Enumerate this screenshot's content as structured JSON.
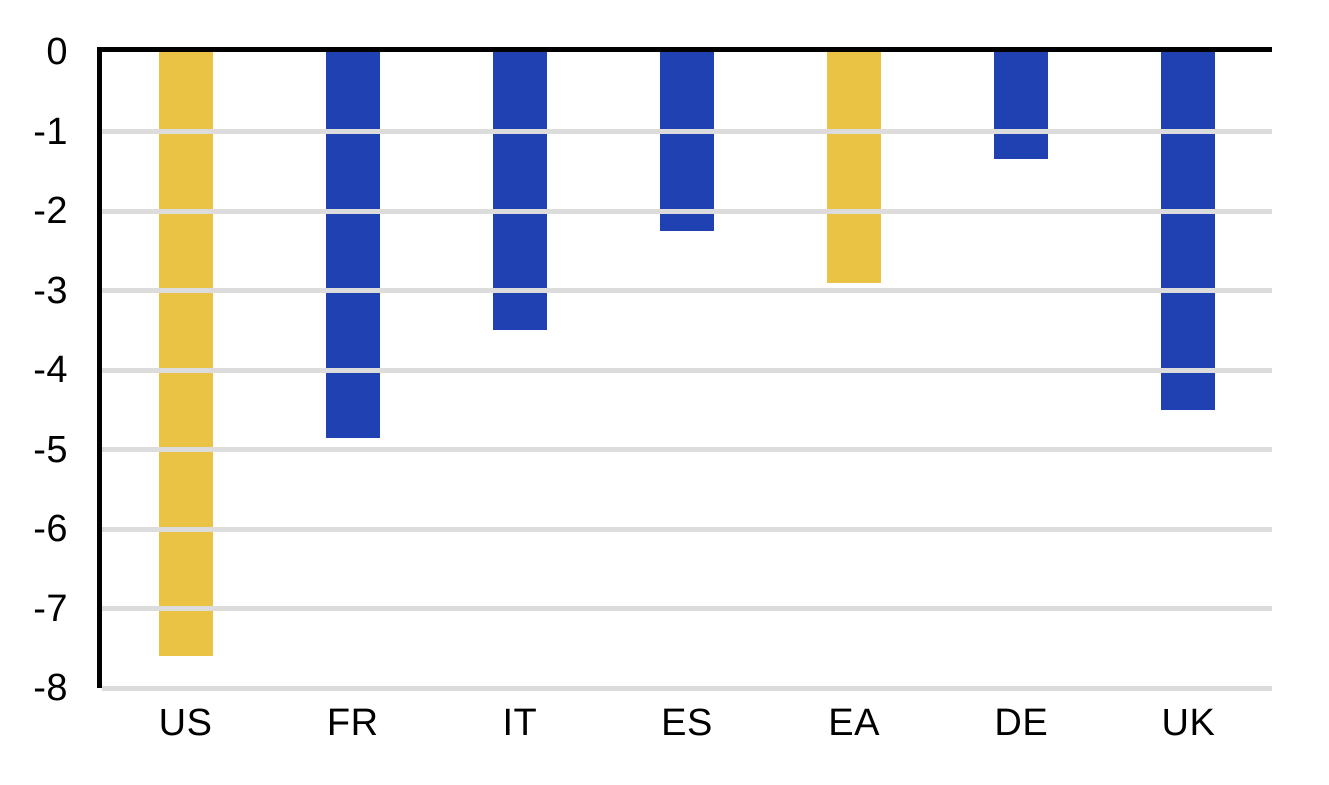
{
  "chart_data": {
    "type": "bar",
    "title": "",
    "xlabel": "",
    "ylabel": "",
    "categories": [
      "US",
      "FR",
      "IT",
      "ES",
      "EA",
      "DE",
      "UK"
    ],
    "values": [
      -7.6,
      -4.85,
      -3.5,
      -2.25,
      -2.9,
      -1.35,
      -4.5
    ],
    "bar_colors": [
      "#EAC344",
      "#2041B2",
      "#2041B2",
      "#2041B2",
      "#EAC344",
      "#2041B2",
      "#2041B2"
    ],
    "ylim": [
      -8,
      0
    ],
    "ytick_labels": [
      "0",
      "-1",
      "-2",
      "-3",
      "-4",
      "-5",
      "-6",
      "-7",
      "-8"
    ],
    "grid": true,
    "legend": false,
    "colors": {
      "highlight": "#EAC344",
      "primary": "#2041B2",
      "gridline": "#DCDCDC",
      "axis": "#000000",
      "text": "#000000",
      "background": "#FFFFFF"
    }
  }
}
